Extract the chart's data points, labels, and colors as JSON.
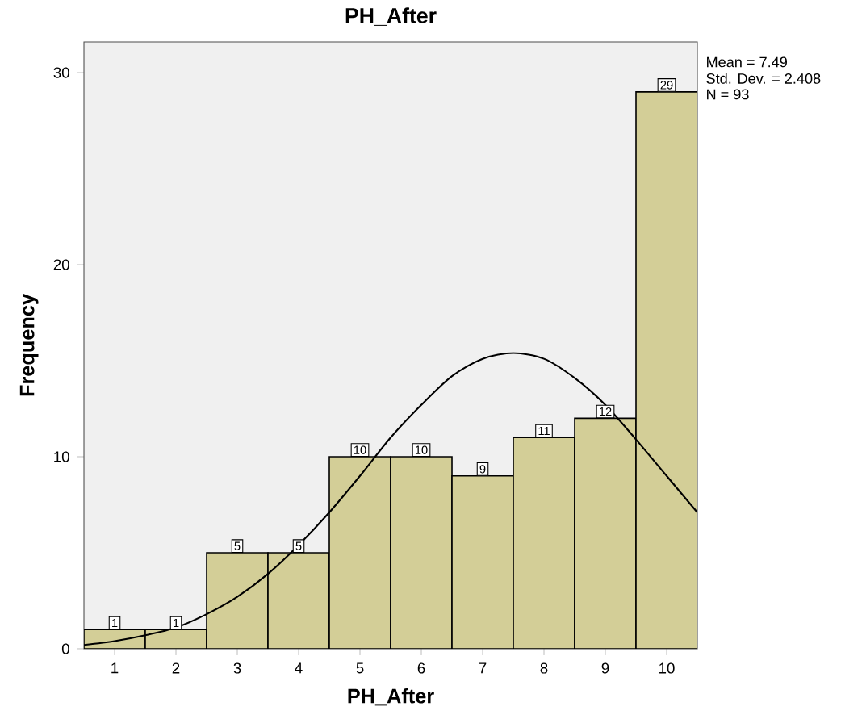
{
  "chart_data": {
    "type": "histogram",
    "title": "PH_After",
    "xlabel": "PH_After",
    "ylabel": "Frequency",
    "bins": [
      0.5,
      1.5,
      2.5,
      3.5,
      4.5,
      5.5,
      6.5,
      7.5,
      8.5,
      9.5,
      10.5
    ],
    "values": [
      1,
      1,
      5,
      5,
      10,
      10,
      9,
      11,
      12,
      29
    ],
    "value_labels": [
      "1",
      "1",
      "5",
      "5",
      "10",
      "10",
      "9",
      "11",
      "12",
      "29"
    ],
    "color": "#d3ce97",
    "series": [
      {
        "type": "line",
        "color": "#000000",
        "x": [
          0.5,
          1,
          1.5,
          2,
          2.5,
          3,
          3.5,
          4,
          4.5,
          5,
          5.5,
          6,
          6.5,
          7,
          7.5,
          8,
          8.5,
          9,
          9.5,
          10,
          10.5
        ],
        "values": [
          0.2,
          0.4,
          0.7,
          1.1,
          1.8,
          2.7,
          3.9,
          5.4,
          7.1,
          9.0,
          11.0,
          12.7,
          14.2,
          15.1,
          15.4,
          15.1,
          14.1,
          12.7,
          10.9,
          9.0,
          7.1
        ]
      }
    ],
    "xlim": [
      0.5,
      10.5
    ],
    "ylim": [
      0,
      31.6
    ],
    "xticks": [
      1,
      2,
      3,
      4,
      5,
      6,
      7,
      8,
      9,
      10
    ],
    "yticks": [
      0,
      10,
      20,
      30
    ],
    "annotations": [
      "Mean = 7.49",
      "Std. Dev. = 2.408",
      "N = 93"
    ],
    "grid": false
  }
}
